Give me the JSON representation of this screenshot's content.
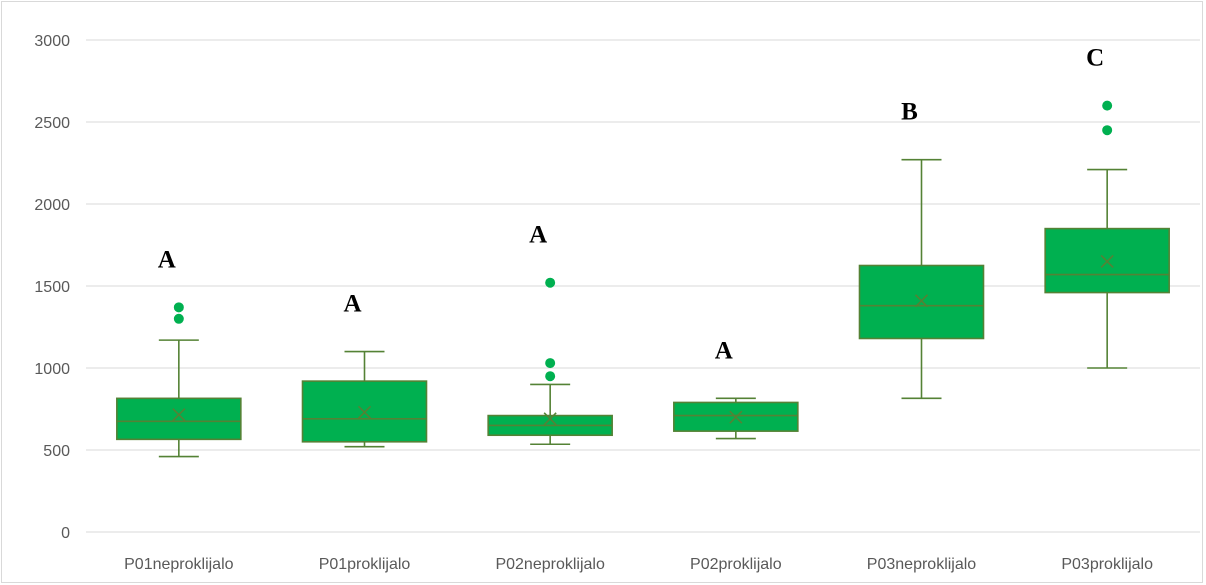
{
  "chart_data": {
    "type": "box",
    "title": "",
    "xlabel": "",
    "ylabel": "",
    "ylim": [
      0,
      3000
    ],
    "yticks": [
      0,
      500,
      1000,
      1500,
      2000,
      2500,
      3000
    ],
    "grid": true,
    "legend": "none",
    "colors": {
      "box_fill": "#00b050",
      "box_stroke": "#548235",
      "grid": "#d9d9d9",
      "tick_text": "#595959"
    },
    "categories": [
      "P01neproklijalo",
      "P01proklijalo",
      "P02neproklijalo",
      "P02proklijalo",
      "P03neproklijalo",
      "P03proklijalo"
    ],
    "boxes": [
      {
        "category": "P01neproklijalo",
        "whisker_low": 460,
        "q1": 565,
        "median": 675,
        "q3": 815,
        "whisker_high": 1170,
        "mean": 715,
        "outliers": [
          1300,
          1370
        ],
        "letter": "A"
      },
      {
        "category": "P01proklijalo",
        "whisker_low": 520,
        "q1": 550,
        "median": 690,
        "q3": 920,
        "whisker_high": 1100,
        "mean": 730,
        "outliers": [],
        "letter": "A"
      },
      {
        "category": "P02neproklijalo",
        "whisker_low": 535,
        "q1": 590,
        "median": 650,
        "q3": 710,
        "whisker_high": 900,
        "mean": 690,
        "outliers": [
          950,
          1030,
          1520
        ],
        "letter": "A"
      },
      {
        "category": "P02proklijalo",
        "whisker_low": 570,
        "q1": 615,
        "median": 710,
        "q3": 790,
        "whisker_high": 815,
        "mean": 700,
        "outliers": [],
        "letter": "A"
      },
      {
        "category": "P03neproklijalo",
        "whisker_low": 815,
        "q1": 1180,
        "median": 1380,
        "q3": 1625,
        "whisker_high": 2270,
        "mean": 1410,
        "outliers": [],
        "letter": "B"
      },
      {
        "category": "P03proklijalo",
        "whisker_low": 1000,
        "q1": 1460,
        "median": 1570,
        "q3": 1850,
        "whisker_high": 2210,
        "mean": 1650,
        "outliers": [
          2450,
          2600
        ],
        "letter": "C"
      }
    ]
  }
}
